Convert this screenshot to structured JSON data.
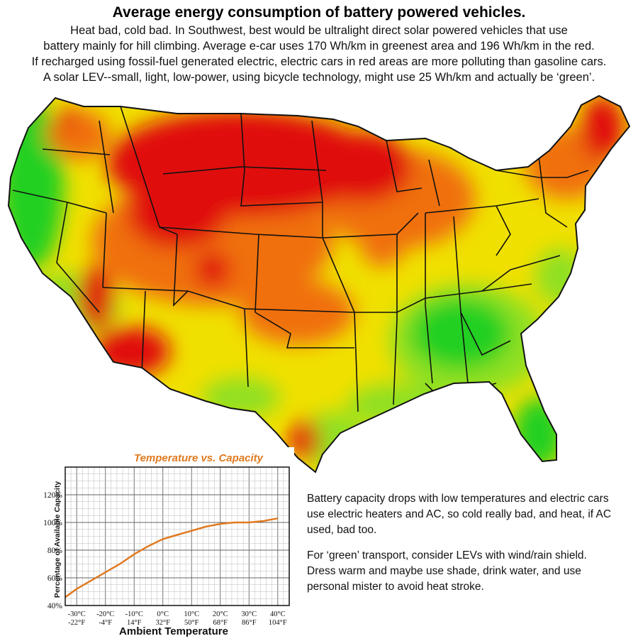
{
  "header": {
    "title": "Average energy consumption of battery powered vehicles.",
    "lines": [
      "Heat bad, cold bad.  In Southwest, best would be ultralight direct solar powered vehicles that use",
      "battery mainly for hill climbing. Average e-car uses 170 Wh/km in greenest area and 196 Wh/km in the red.",
      "If recharged using fossil-fuel generated electric, electric cars in red areas are more polluting than gasoline cars.",
      "A solar LEV--small, light, low-power, using bicycle technology, might use 25 Wh/km and actually be ‘green’."
    ]
  },
  "map": {
    "colors": {
      "high": "#e01010",
      "upper": "#f07010",
      "mid": "#f0e000",
      "low": "#90e020",
      "lowest": "#20d020",
      "border": "#111111"
    }
  },
  "notes": {
    "p1": "Battery capacity drops with low temperatures and electric cars use electric heaters and AC, so cold really bad, and heat, if AC used, bad too.",
    "p2": "For ‘green’ transport, consider LEVs with wind/rain shield. Dress warm and maybe use shade, drink water, and use personal mister to avoid heat stroke."
  },
  "chart_data": {
    "type": "line",
    "title": "Temperature vs. Capacity",
    "xlabel": "Ambient Temperature",
    "ylabel": "Percentage of Available Capacity",
    "xlim": [
      -34,
      44
    ],
    "ylim": [
      40,
      140
    ],
    "x_ticks": [
      {
        "c": -30,
        "c_label": "-30°C",
        "f_label": "-22°F"
      },
      {
        "c": -20,
        "c_label": "-20°C",
        "f_label": "-4°F"
      },
      {
        "c": -10,
        "c_label": "-10°C",
        "f_label": "14°F"
      },
      {
        "c": 0,
        "c_label": "0°C",
        "f_label": "32°F"
      },
      {
        "c": 10,
        "c_label": "10°C",
        "f_label": "50°F"
      },
      {
        "c": 20,
        "c_label": "20°C",
        "f_label": "68°F"
      },
      {
        "c": 30,
        "c_label": "30°C",
        "f_label": "86°F"
      },
      {
        "c": 40,
        "c_label": "40°C",
        "f_label": "104°F"
      }
    ],
    "y_ticks": [
      40,
      60,
      80,
      100,
      120
    ],
    "y_tick_labels": [
      "40%",
      "60%",
      "80%",
      "100%",
      "120%"
    ],
    "grid": true,
    "line_color": "#e07a20",
    "x": [
      -34,
      -30,
      -25,
      -20,
      -15,
      -10,
      -5,
      0,
      5,
      10,
      15,
      20,
      25,
      30,
      35,
      40
    ],
    "y": [
      46,
      52,
      58,
      64,
      70,
      77,
      83,
      88,
      91,
      94,
      97,
      99,
      100,
      100,
      101,
      103
    ]
  }
}
